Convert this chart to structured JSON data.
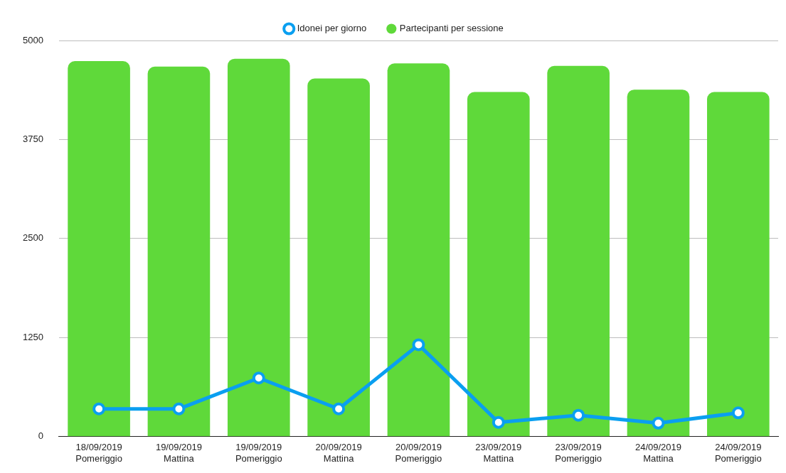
{
  "chart_data": {
    "type": "bar",
    "categories": [
      "18/09/2019\nPomeriggio",
      "19/09/2019\nMattina",
      "19/09/2019\nPomeriggio",
      "20/09/2019\nMattina",
      "20/09/2019\nPomeriggio",
      "23/09/2019\nMattina",
      "23/09/2019\nPomeriggio",
      "24/09/2019\nMattina",
      "24/09/2019\nPomeriggio"
    ],
    "series": [
      {
        "name": "Idonei per giorno",
        "type": "line",
        "color": "#0a9ff0",
        "values": [
          350,
          350,
          740,
          350,
          1160,
          180,
          270,
          170,
          300
        ]
      },
      {
        "name": "Partecipanti per sessione",
        "color": "#5fd93a",
        "values": [
          4740,
          4670,
          4770,
          4520,
          4710,
          4350,
          4680,
          4380,
          4350
        ]
      }
    ],
    "ylim": [
      0,
      5000
    ],
    "yticks": [
      0,
      1250,
      2500,
      3750,
      5000
    ],
    "grid": "y",
    "legend": "top",
    "marker": "circle",
    "line_style": "solid"
  }
}
